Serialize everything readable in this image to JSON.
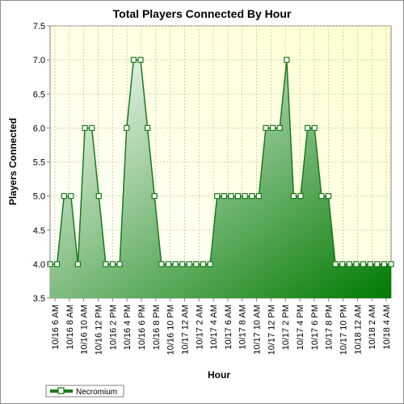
{
  "chart_data": {
    "type": "area",
    "title": "Total Players Connected By Hour",
    "xlabel": "Hour",
    "ylabel": "Players Connected",
    "ylim": [
      3.5,
      7.5
    ],
    "yticks": [
      "3.5",
      "4.0",
      "4.5",
      "5.0",
      "5.5",
      "6.0",
      "6.5",
      "7.0",
      "7.5"
    ],
    "grid": true,
    "legend_position": "bottom-left",
    "colors": {
      "line": "#1a7a1a",
      "fill_light": "#ffffff",
      "fill_dark": "#008000",
      "plot_bg_light": "#ffffff",
      "plot_bg_dark": "#ffffd6",
      "grid": "#c8c8a0"
    },
    "x_tick_labels": [
      "10/16 6 AM",
      "10/16 8 AM",
      "10/16 10 AM",
      "10/16 12 PM",
      "10/16 2 PM",
      "10/16 4 PM",
      "10/16 6 PM",
      "10/16 8 PM",
      "10/16 10 PM",
      "10/17 12 AM",
      "10/17 2 AM",
      "10/17 4 AM",
      "10/17 6 AM",
      "10/17 8 AM",
      "10/17 10 AM",
      "10/17 12 PM",
      "10/17 2 PM",
      "10/17 4 PM",
      "10/17 6 PM",
      "10/17 8 PM",
      "10/17 10 PM",
      "10/18 12 AM",
      "10/18 2 AM",
      "10/18 4 AM"
    ],
    "series": [
      {
        "name": "Necromium",
        "values": [
          4,
          4,
          5,
          5,
          4,
          6,
          6,
          5,
          4,
          4,
          4,
          6,
          7,
          7,
          6,
          5,
          4,
          4,
          4,
          4,
          4,
          4,
          4,
          4,
          5,
          5,
          5,
          5,
          5,
          5,
          5,
          6,
          6,
          6,
          7,
          5,
          5,
          6,
          6,
          5,
          5,
          4,
          4,
          4,
          4,
          4,
          4,
          4,
          4,
          4
        ]
      }
    ]
  }
}
